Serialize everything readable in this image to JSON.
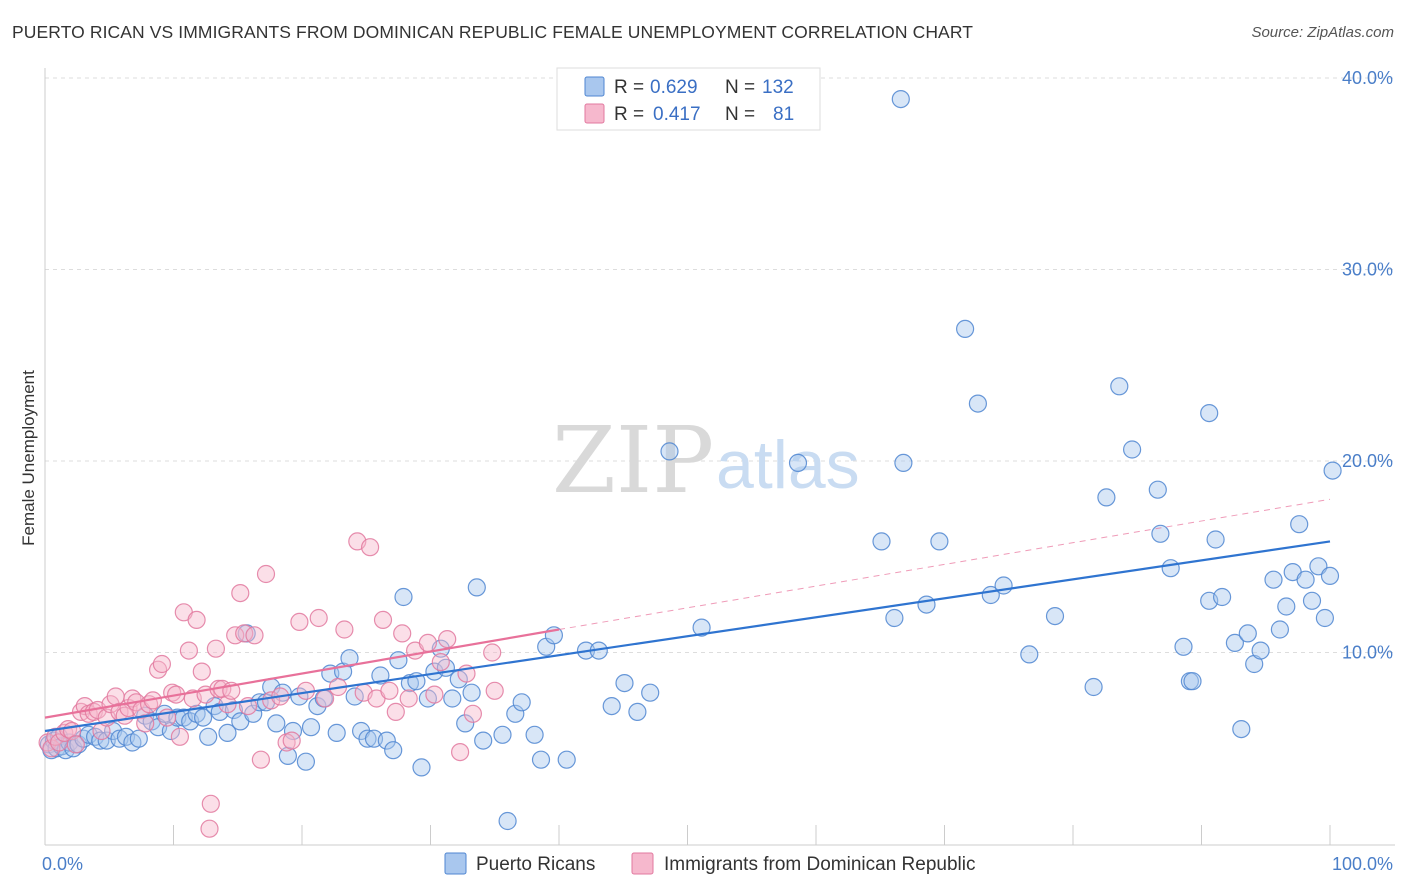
{
  "title": "PUERTO RICAN VS IMMIGRANTS FROM DOMINICAN REPUBLIC FEMALE UNEMPLOYMENT CORRELATION CHART",
  "source": "Source: ZipAtlas.com",
  "watermark": {
    "zip": "ZIP",
    "atlas": "atlas"
  },
  "colors": {
    "blue_fill": "#a9c7ee",
    "blue_stroke": "#4f86d1",
    "blue_line": "#2f74d0",
    "pink_fill": "#f6b8cd",
    "pink_stroke": "#e2799f",
    "pink_line": "#e8719a",
    "grid": "#dddddd",
    "tick_text": "#4a7ec8"
  },
  "legend": {
    "rows": [
      {
        "r_label": "R =",
        "r_value": "0.629",
        "n_label": "N =",
        "n_value": "132",
        "color": "blue"
      },
      {
        "r_label": "R =",
        "r_value": " 0.417",
        "n_label": "N =",
        "n_value": "  81",
        "color": "pink"
      }
    ]
  },
  "bottom_legend": [
    {
      "label": "Puerto Ricans",
      "color": "blue"
    },
    {
      "label": "Immigrants from Dominican Republic",
      "color": "pink"
    }
  ],
  "chart_data": {
    "type": "scatter",
    "xlabel": "",
    "ylabel": "Female Unemployment",
    "xlim": [
      0,
      100
    ],
    "ylim": [
      0,
      40
    ],
    "x_tick_labels": {
      "min": "0.0%",
      "max": "100.0%"
    },
    "y_ticks": [
      {
        "value": 10,
        "label": "10.0%"
      },
      {
        "value": 20,
        "label": "20.0%"
      },
      {
        "value": 30,
        "label": "30.0%"
      },
      {
        "value": 40,
        "label": "40.0%"
      }
    ],
    "grid": true,
    "series": [
      {
        "name": "Puerto Ricans",
        "color": "blue",
        "trend": {
          "x": [
            0,
            100
          ],
          "y": [
            5.9,
            15.8
          ],
          "style": "solid"
        },
        "points": [
          [
            0.3,
            5.2
          ],
          [
            0.5,
            4.9
          ],
          [
            0.7,
            5.4
          ],
          [
            0.9,
            5.0
          ],
          [
            1.1,
            5.6
          ],
          [
            1.3,
            5.1
          ],
          [
            1.6,
            4.9
          ],
          [
            1.9,
            5.3
          ],
          [
            2.2,
            5.0
          ],
          [
            2.6,
            5.2
          ],
          [
            3.0,
            5.5
          ],
          [
            3.4,
            5.7
          ],
          [
            3.9,
            5.6
          ],
          [
            4.3,
            5.4
          ],
          [
            4.8,
            5.4
          ],
          [
            5.3,
            5.9
          ],
          [
            5.8,
            5.5
          ],
          [
            6.3,
            5.6
          ],
          [
            6.8,
            5.3
          ],
          [
            7.3,
            5.5
          ],
          [
            7.8,
            6.7
          ],
          [
            8.3,
            6.4
          ],
          [
            8.8,
            6.1
          ],
          [
            9.3,
            6.8
          ],
          [
            9.8,
            5.9
          ],
          [
            10.3,
            6.6
          ],
          [
            10.8,
            6.6
          ],
          [
            11.3,
            6.4
          ],
          [
            11.8,
            6.8
          ],
          [
            12.3,
            6.6
          ],
          [
            12.7,
            5.6
          ],
          [
            13.2,
            7.2
          ],
          [
            13.6,
            6.9
          ],
          [
            14.2,
            5.8
          ],
          [
            14.7,
            7.0
          ],
          [
            15.2,
            6.4
          ],
          [
            15.7,
            11.0
          ],
          [
            16.2,
            6.8
          ],
          [
            16.7,
            7.4
          ],
          [
            17.2,
            7.4
          ],
          [
            17.6,
            8.2
          ],
          [
            18.0,
            6.3
          ],
          [
            18.5,
            7.9
          ],
          [
            18.9,
            4.6
          ],
          [
            19.3,
            5.9
          ],
          [
            19.8,
            7.7
          ],
          [
            20.3,
            4.3
          ],
          [
            20.7,
            6.1
          ],
          [
            21.2,
            7.2
          ],
          [
            21.7,
            7.6
          ],
          [
            22.2,
            8.9
          ],
          [
            22.7,
            5.8
          ],
          [
            23.2,
            9.0
          ],
          [
            23.7,
            9.7
          ],
          [
            24.1,
            7.7
          ],
          [
            24.6,
            5.9
          ],
          [
            25.1,
            5.5
          ],
          [
            25.6,
            5.5
          ],
          [
            26.1,
            8.8
          ],
          [
            26.6,
            5.4
          ],
          [
            27.1,
            4.9
          ],
          [
            27.5,
            9.6
          ],
          [
            27.9,
            12.9
          ],
          [
            28.4,
            8.4
          ],
          [
            28.9,
            8.5
          ],
          [
            29.3,
            4.0
          ],
          [
            29.8,
            7.6
          ],
          [
            30.3,
            9.0
          ],
          [
            30.8,
            10.2
          ],
          [
            31.2,
            9.2
          ],
          [
            31.7,
            7.6
          ],
          [
            32.2,
            8.6
          ],
          [
            32.7,
            6.3
          ],
          [
            33.2,
            7.9
          ],
          [
            33.6,
            13.4
          ],
          [
            34.1,
            5.4
          ],
          [
            35.6,
            5.7
          ],
          [
            36.6,
            6.8
          ],
          [
            36.0,
            1.2
          ],
          [
            37.1,
            7.4
          ],
          [
            38.1,
            5.7
          ],
          [
            38.6,
            4.4
          ],
          [
            39.0,
            10.3
          ],
          [
            39.6,
            10.9
          ],
          [
            40.6,
            4.4
          ],
          [
            42.1,
            10.1
          ],
          [
            43.1,
            10.1
          ],
          [
            44.1,
            7.2
          ],
          [
            45.1,
            8.4
          ],
          [
            46.1,
            6.9
          ],
          [
            47.1,
            7.9
          ],
          [
            48.6,
            20.5
          ],
          [
            51.1,
            11.3
          ],
          [
            58.6,
            19.9
          ],
          [
            65.1,
            15.8
          ],
          [
            66.1,
            11.8
          ],
          [
            66.6,
            38.9
          ],
          [
            66.8,
            19.9
          ],
          [
            68.6,
            12.5
          ],
          [
            69.6,
            15.8
          ],
          [
            71.6,
            26.9
          ],
          [
            72.6,
            23.0
          ],
          [
            73.6,
            13.0
          ],
          [
            74.6,
            13.5
          ],
          [
            76.6,
            9.9
          ],
          [
            78.6,
            11.9
          ],
          [
            81.6,
            8.2
          ],
          [
            82.6,
            18.1
          ],
          [
            83.6,
            23.9
          ],
          [
            84.6,
            20.6
          ],
          [
            86.6,
            18.5
          ],
          [
            86.8,
            16.2
          ],
          [
            87.6,
            14.4
          ],
          [
            88.6,
            10.3
          ],
          [
            89.1,
            8.5
          ],
          [
            89.3,
            8.5
          ],
          [
            90.6,
            12.7
          ],
          [
            90.6,
            22.5
          ],
          [
            91.1,
            15.9
          ],
          [
            91.6,
            12.9
          ],
          [
            92.6,
            10.5
          ],
          [
            93.1,
            6.0
          ],
          [
            93.6,
            11.0
          ],
          [
            94.1,
            9.4
          ],
          [
            94.6,
            10.1
          ],
          [
            95.6,
            13.8
          ],
          [
            96.1,
            11.2
          ],
          [
            96.6,
            12.4
          ],
          [
            97.1,
            14.2
          ],
          [
            97.6,
            16.7
          ],
          [
            98.1,
            13.8
          ],
          [
            98.6,
            12.7
          ],
          [
            99.1,
            14.5
          ],
          [
            99.6,
            11.8
          ],
          [
            100.0,
            14.0
          ],
          [
            100.2,
            19.5
          ]
        ]
      },
      {
        "name": "Immigrants from Dominican Republic",
        "color": "pink",
        "trend": {
          "x": [
            0,
            40
          ],
          "y": [
            6.6,
            11.2
          ],
          "style": "solid",
          "dashed_extension_to": [
            100,
            18.0
          ]
        },
        "points": [
          [
            0.2,
            5.3
          ],
          [
            0.5,
            5.0
          ],
          [
            0.8,
            5.6
          ],
          [
            1.1,
            5.3
          ],
          [
            1.5,
            5.8
          ],
          [
            1.8,
            6.0
          ],
          [
            2.1,
            5.9
          ],
          [
            2.4,
            5.2
          ],
          [
            2.8,
            6.9
          ],
          [
            3.1,
            7.2
          ],
          [
            3.4,
            6.8
          ],
          [
            3.8,
            6.9
          ],
          [
            4.1,
            7.0
          ],
          [
            4.4,
            5.9
          ],
          [
            4.8,
            6.6
          ],
          [
            5.1,
            7.3
          ],
          [
            5.5,
            7.7
          ],
          [
            5.8,
            6.9
          ],
          [
            6.2,
            6.7
          ],
          [
            6.5,
            7.1
          ],
          [
            6.8,
            7.6
          ],
          [
            7.1,
            7.4
          ],
          [
            7.5,
            7.0
          ],
          [
            7.8,
            6.3
          ],
          [
            8.1,
            7.3
          ],
          [
            8.4,
            7.5
          ],
          [
            8.8,
            9.1
          ],
          [
            9.1,
            9.4
          ],
          [
            9.5,
            6.6
          ],
          [
            9.9,
            7.9
          ],
          [
            10.2,
            7.8
          ],
          [
            10.5,
            5.6
          ],
          [
            10.8,
            12.1
          ],
          [
            11.2,
            10.1
          ],
          [
            11.5,
            7.6
          ],
          [
            11.8,
            11.7
          ],
          [
            12.2,
            9.0
          ],
          [
            12.5,
            7.8
          ],
          [
            12.8,
            0.8
          ],
          [
            12.9,
            2.1
          ],
          [
            13.3,
            10.2
          ],
          [
            13.5,
            8.1
          ],
          [
            13.8,
            8.1
          ],
          [
            14.2,
            7.3
          ],
          [
            14.5,
            8.0
          ],
          [
            14.8,
            10.9
          ],
          [
            15.2,
            13.1
          ],
          [
            15.5,
            11.0
          ],
          [
            15.8,
            7.2
          ],
          [
            16.3,
            10.9
          ],
          [
            16.8,
            4.4
          ],
          [
            17.2,
            14.1
          ],
          [
            17.6,
            7.5
          ],
          [
            18.3,
            7.7
          ],
          [
            18.8,
            5.3
          ],
          [
            19.2,
            5.4
          ],
          [
            19.8,
            11.6
          ],
          [
            20.3,
            8.0
          ],
          [
            21.3,
            11.8
          ],
          [
            21.8,
            7.6
          ],
          [
            22.8,
            8.2
          ],
          [
            23.3,
            11.2
          ],
          [
            24.3,
            15.8
          ],
          [
            24.8,
            7.9
          ],
          [
            25.3,
            15.5
          ],
          [
            25.8,
            7.6
          ],
          [
            26.3,
            11.7
          ],
          [
            26.8,
            8.0
          ],
          [
            27.3,
            6.9
          ],
          [
            27.8,
            11.0
          ],
          [
            28.3,
            7.6
          ],
          [
            28.8,
            10.1
          ],
          [
            29.8,
            10.5
          ],
          [
            30.3,
            7.8
          ],
          [
            30.8,
            9.5
          ],
          [
            31.3,
            10.7
          ],
          [
            32.3,
            4.8
          ],
          [
            32.8,
            8.9
          ],
          [
            33.3,
            6.8
          ],
          [
            34.8,
            10.0
          ],
          [
            35.0,
            8.0
          ]
        ]
      }
    ]
  }
}
